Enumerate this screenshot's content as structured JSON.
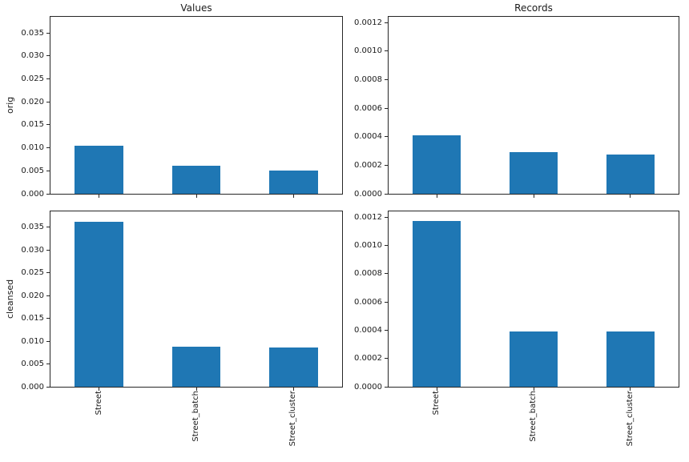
{
  "figure": {
    "background": "#ffffff",
    "bar_color": "#1f77b4",
    "axis_color": "#262626",
    "text_color": "#1a1a1a"
  },
  "column_titles": [
    "Values",
    "Records"
  ],
  "row_labels": [
    "orig",
    "cleansed"
  ],
  "categories": [
    "Street",
    "Street_batch",
    "Street_cluster"
  ],
  "chart_data": [
    {
      "type": "bar",
      "title": "Values",
      "row_label": "orig",
      "categories": [
        "Street",
        "Street_batch",
        "Street_cluster"
      ],
      "values": [
        0.0105,
        0.0061,
        0.005
      ],
      "ylim": [
        0,
        0.0385
      ],
      "ytick_labels": [
        "0.000",
        "0.005",
        "0.010",
        "0.015",
        "0.020",
        "0.025",
        "0.030",
        "0.035"
      ],
      "x_tick_labels_visible": false,
      "grid": false,
      "legend": false
    },
    {
      "type": "bar",
      "title": "Records",
      "row_label": "orig",
      "categories": [
        "Street",
        "Street_batch",
        "Street_cluster"
      ],
      "values": [
        0.00041,
        0.00029,
        0.000275
      ],
      "ylim": [
        0,
        0.00124
      ],
      "ytick_labels": [
        "0.0000",
        "0.0002",
        "0.0004",
        "0.0006",
        "0.0008",
        "0.0010",
        "0.0012"
      ],
      "x_tick_labels_visible": false,
      "grid": false,
      "legend": false
    },
    {
      "type": "bar",
      "title": "",
      "row_label": "cleansed",
      "categories": [
        "Street",
        "Street_batch",
        "Street_cluster"
      ],
      "values": [
        0.0363,
        0.0088,
        0.0087
      ],
      "ylim": [
        0,
        0.0385
      ],
      "ytick_labels": [
        "0.000",
        "0.005",
        "0.010",
        "0.015",
        "0.020",
        "0.025",
        "0.030",
        "0.035"
      ],
      "x_tick_labels_visible": true,
      "grid": false,
      "legend": false
    },
    {
      "type": "bar",
      "title": "",
      "row_label": "cleansed",
      "categories": [
        "Street",
        "Street_batch",
        "Street_cluster"
      ],
      "values": [
        0.001172,
        0.00039,
        0.00039
      ],
      "ylim": [
        0,
        0.00124
      ],
      "ytick_labels": [
        "0.0000",
        "0.0002",
        "0.0004",
        "0.0006",
        "0.0008",
        "0.0010",
        "0.0012"
      ],
      "x_tick_labels_visible": true,
      "grid": false,
      "legend": false
    }
  ]
}
